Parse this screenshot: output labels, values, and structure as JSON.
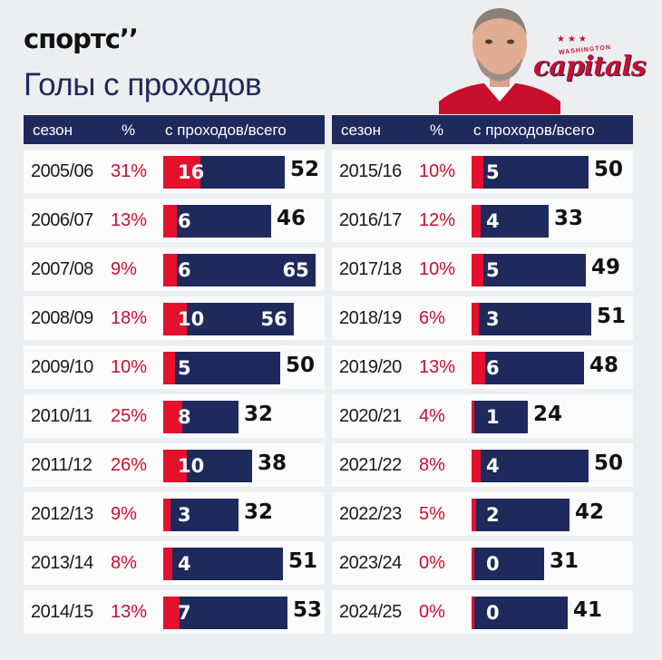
{
  "brand": "спортс’’",
  "title": "Голы с проходов",
  "headers": {
    "season": "сезон",
    "pct": "%",
    "ratio": "с проходов/всего"
  },
  "colors": {
    "navy": "#1f2a5c",
    "red": "#e4112e",
    "pct_text": "#c8102e"
  },
  "logo": {
    "stars": "★★★",
    "city": "WASHINGTON",
    "team": "capitals"
  },
  "chart_data": {
    "type": "bar",
    "title": "Голы с проходов",
    "series": [
      {
        "name": "с проходов",
        "color": "#e4112e"
      },
      {
        "name": "всего",
        "color": "#1f2a5c"
      }
    ],
    "rows": [
      {
        "season": "2005/06",
        "pct": "31%",
        "rush": 16,
        "total": 52
      },
      {
        "season": "2006/07",
        "pct": "13%",
        "rush": 6,
        "total": 46
      },
      {
        "season": "2007/08",
        "pct": "9%",
        "rush": 6,
        "total": 65
      },
      {
        "season": "2008/09",
        "pct": "18%",
        "rush": 10,
        "total": 56
      },
      {
        "season": "2009/10",
        "pct": "10%",
        "rush": 5,
        "total": 50
      },
      {
        "season": "2010/11",
        "pct": "25%",
        "rush": 8,
        "total": 32
      },
      {
        "season": "2011/12",
        "pct": "26%",
        "rush": 10,
        "total": 38
      },
      {
        "season": "2012/13",
        "pct": "9%",
        "rush": 3,
        "total": 32
      },
      {
        "season": "2013/14",
        "pct": "8%",
        "rush": 4,
        "total": 51
      },
      {
        "season": "2014/15",
        "pct": "13%",
        "rush": 7,
        "total": 53
      },
      {
        "season": "2015/16",
        "pct": "10%",
        "rush": 5,
        "total": 50
      },
      {
        "season": "2016/17",
        "pct": "12%",
        "rush": 4,
        "total": 33
      },
      {
        "season": "2017/18",
        "pct": "10%",
        "rush": 5,
        "total": 49
      },
      {
        "season": "2018/19",
        "pct": "6%",
        "rush": 3,
        "total": 51
      },
      {
        "season": "2019/20",
        "pct": "13%",
        "rush": 6,
        "total": 48
      },
      {
        "season": "2020/21",
        "pct": "4%",
        "rush": 1,
        "total": 24
      },
      {
        "season": "2021/22",
        "pct": "8%",
        "rush": 4,
        "total": 50
      },
      {
        "season": "2022/23",
        "pct": "5%",
        "rush": 2,
        "total": 42
      },
      {
        "season": "2023/24",
        "pct": "0%",
        "rush": 0,
        "total": 31
      },
      {
        "season": "2024/25",
        "pct": "0%",
        "rush": 0,
        "total": 41
      }
    ]
  }
}
